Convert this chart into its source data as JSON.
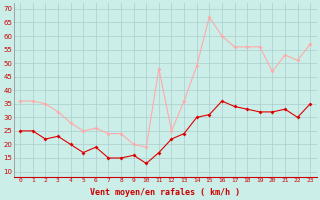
{
  "x": [
    0,
    1,
    2,
    3,
    4,
    5,
    6,
    7,
    8,
    9,
    10,
    11,
    12,
    13,
    14,
    15,
    16,
    17,
    18,
    19,
    20,
    21,
    22,
    23
  ],
  "wind_avg": [
    25,
    25,
    22,
    23,
    20,
    17,
    19,
    15,
    15,
    16,
    13,
    17,
    22,
    24,
    30,
    31,
    36,
    34,
    33,
    32,
    32,
    33,
    30,
    35
  ],
  "wind_gust": [
    36,
    36,
    35,
    32,
    28,
    25,
    26,
    24,
    24,
    20,
    19,
    48,
    25,
    36,
    49,
    67,
    60,
    56,
    56,
    56,
    47,
    53,
    51,
    57
  ],
  "avg_color": "#dd0000",
  "gust_color": "#ffaaaa",
  "bg_color": "#cceee8",
  "grid_color": "#aacccc",
  "xlabel": "Vent moyen/en rafales ( km/h )",
  "xlabel_color": "#cc0000",
  "yticks": [
    10,
    15,
    20,
    25,
    30,
    35,
    40,
    45,
    50,
    55,
    60,
    65,
    70
  ],
  "ylim": [
    8,
    72
  ],
  "xlim": [
    -0.5,
    23.5
  ],
  "tick_color": "#cc0000",
  "spine_color": "#888888"
}
